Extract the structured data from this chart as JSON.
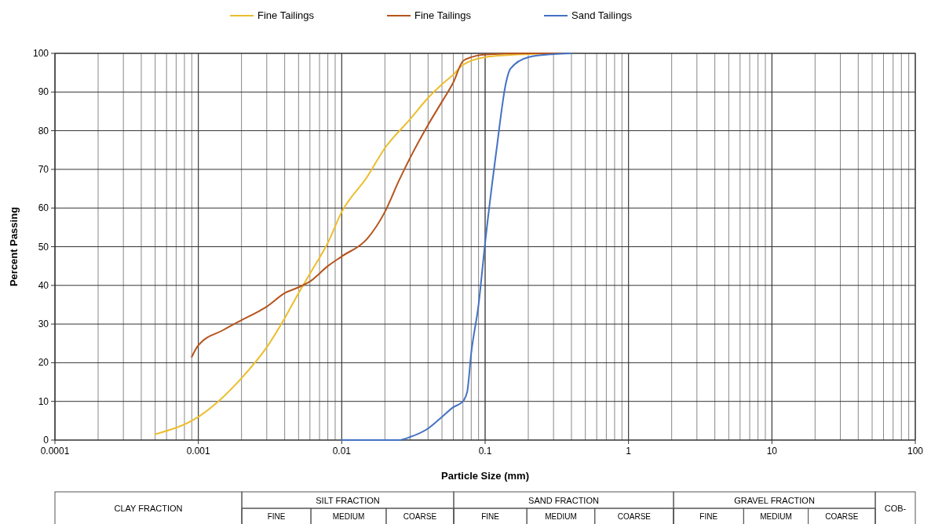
{
  "chart_data": {
    "type": "line",
    "xlabel": "Particle Size (mm)",
    "ylabel": "Percent Passing",
    "log": "x",
    "grid": true,
    "legend": "top",
    "line_style": "solid",
    "xlim": [
      0.0001,
      100
    ],
    "xticks": [
      0.0001,
      0.001,
      0.01,
      0.1,
      1,
      10,
      100
    ],
    "ylim": [
      0,
      100
    ],
    "yticks": [
      0,
      10,
      20,
      30,
      40,
      50,
      60,
      70,
      80,
      90,
      100
    ],
    "series": [
      {
        "name": "Fine Tailings",
        "color": "#ecbd2c",
        "x": [
          0.0005,
          0.001,
          0.002,
          0.003,
          0.004,
          0.005,
          0.006,
          0.008,
          0.01,
          0.015,
          0.02,
          0.03,
          0.04,
          0.05,
          0.06,
          0.07,
          0.1,
          0.2,
          0.3
        ],
        "values": [
          1.5,
          6,
          16,
          24,
          31.5,
          38,
          43,
          51,
          59,
          68,
          75.5,
          83,
          88.5,
          92,
          94.5,
          97,
          99,
          99.8,
          100
        ]
      },
      {
        "name": "Fine Tailings",
        "color": "#b5541c",
        "x": [
          0.0009,
          0.001,
          0.0015,
          0.002,
          0.0027,
          0.003,
          0.004,
          0.005,
          0.006,
          0.008,
          0.01,
          0.015,
          0.02,
          0.025,
          0.03,
          0.04,
          0.05,
          0.06,
          0.07,
          0.08,
          0.1,
          0.2,
          0.4
        ],
        "values": [
          21.5,
          24.5,
          28.5,
          31,
          33.5,
          34.5,
          38,
          39.5,
          41,
          45,
          47.5,
          52,
          59,
          67,
          73,
          81.5,
          87.5,
          92.5,
          98,
          99,
          99.7,
          100,
          100
        ]
      },
      {
        "name": "Sand Tailings",
        "color": "#4472c4",
        "x": [
          0.01,
          0.02,
          0.025,
          0.03,
          0.04,
          0.05,
          0.06,
          0.07,
          0.075,
          0.08,
          0.09,
          0.1,
          0.12,
          0.14,
          0.15,
          0.2,
          0.3,
          0.4
        ],
        "values": [
          0,
          0,
          0,
          0.8,
          3,
          6,
          8.5,
          10,
          12.5,
          22.5,
          35,
          51,
          75,
          92.5,
          96,
          99,
          99.8,
          100
        ]
      }
    ],
    "annotations": [
      "CLAY FRACTION",
      "SILT FRACTION",
      "FINE",
      "MEDIUM",
      "COARSE",
      "SAND FRACTION",
      "FINE",
      "MEDIUM",
      "COARSE",
      "GRAVEL FRACTION",
      "FINE",
      "MEDIUM",
      "COARSE",
      "COB-"
    ]
  }
}
